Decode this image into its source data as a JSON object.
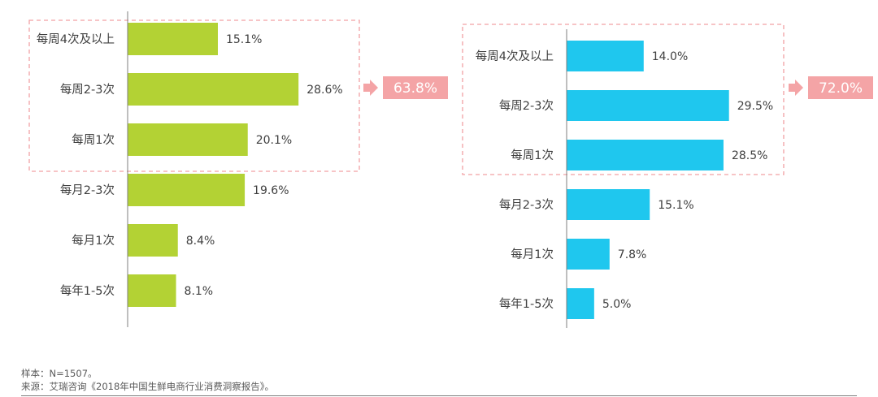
{
  "chart_data": [
    {
      "type": "bar",
      "orientation": "horizontal",
      "categories": [
        "每周4次及以上",
        "每周2-3次",
        "每周1次",
        "每月2-3次",
        "每月1次",
        "每年1-5次"
      ],
      "values": [
        15.1,
        28.6,
        20.1,
        19.6,
        8.4,
        8.1
      ],
      "value_labels": [
        "15.1%",
        "28.6%",
        "20.1%",
        "19.6%",
        "8.4%",
        "8.1%"
      ],
      "color": "#b3d234",
      "xlim": [
        0,
        36
      ],
      "highlight": {
        "indices": [
          0,
          1,
          2
        ],
        "total_label": "63.8%",
        "box_color": "#f2a0a3"
      }
    },
    {
      "type": "bar",
      "orientation": "horizontal",
      "categories": [
        "每周4次及以上",
        "每周2-3次",
        "每周1次",
        "每月2-3次",
        "每月1次",
        "每年1-5次"
      ],
      "values": [
        14.0,
        29.5,
        28.5,
        15.1,
        7.8,
        5.0
      ],
      "value_labels": [
        "14.0%",
        "29.5%",
        "28.5%",
        "15.1%",
        "7.8%",
        "5.0%"
      ],
      "color": "#1fc7ee",
      "xlim": [
        0,
        36
      ],
      "highlight": {
        "indices": [
          0,
          1,
          2
        ],
        "total_label": "72.0%",
        "box_color": "#f2a0a3"
      }
    }
  ],
  "notes": {
    "sample": "样本：N=1507。",
    "source": "来源：艾瑞咨询《2018年中国生鲜电商行业消费洞察报告》。"
  },
  "colors": {
    "text": "#404040",
    "axis": "#7f7f7f",
    "callout_fill": "#f4a4a6",
    "callout_text": "#ffffff"
  }
}
